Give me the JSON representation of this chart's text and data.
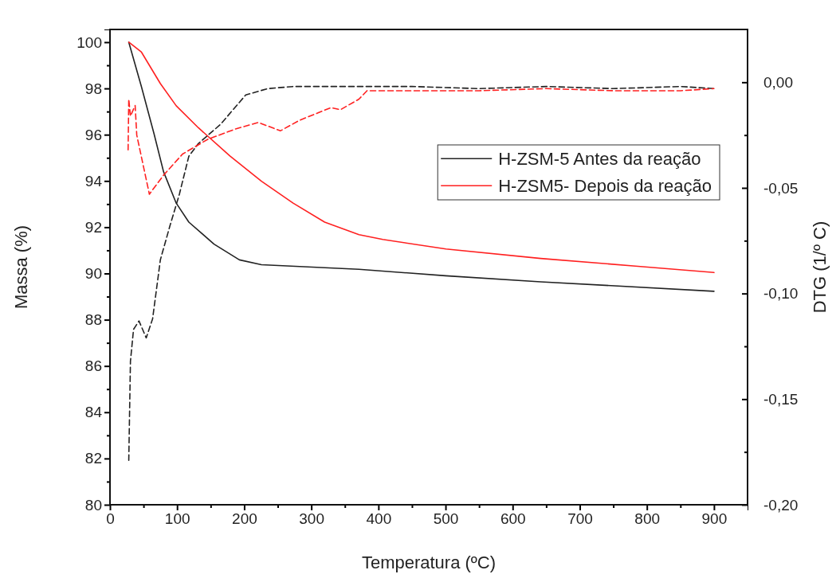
{
  "chart_data": {
    "type": "line",
    "xlabel": "Temperatura (ºC)",
    "ylabel": "Massa (%)",
    "y2label": "DTG (1/º C)",
    "xlim": [
      0,
      950
    ],
    "ylim": [
      80,
      100.55
    ],
    "y2lim": [
      -0.2,
      0.025
    ],
    "xticks": [
      0,
      {
        "value": 50,
        "label": null
      },
      100,
      {
        "value": 150,
        "label": null
      },
      200,
      {
        "value": 250,
        "label": null
      },
      300,
      {
        "value": 350,
        "label": null
      },
      400,
      {
        "value": 450,
        "label": null
      },
      500,
      {
        "value": 550,
        "label": null
      },
      600,
      {
        "value": 650,
        "label": null
      },
      700,
      {
        "value": 750,
        "label": null
      },
      800,
      {
        "value": 850,
        "label": null
      },
      900
    ],
    "yticks": [
      80,
      {
        "value": 81,
        "label": null
      },
      82,
      {
        "value": 83,
        "label": null
      },
      84,
      {
        "value": 85,
        "label": null
      },
      86,
      {
        "value": 87,
        "label": null
      },
      88,
      {
        "value": 89,
        "label": null
      },
      90,
      {
        "value": 91,
        "label": null
      },
      92,
      {
        "value": 93,
        "label": null
      },
      94,
      {
        "value": 95,
        "label": null
      },
      96,
      {
        "value": 97,
        "label": null
      },
      98,
      {
        "value": 99,
        "label": null
      },
      100
    ],
    "y2ticks": [
      {
        "value": -0.2,
        "label": "-0,20"
      },
      {
        "value": -0.175,
        "label": null
      },
      {
        "value": -0.15,
        "label": "-0,15"
      },
      {
        "value": -0.125,
        "label": null
      },
      {
        "value": -0.1,
        "label": "-0,10"
      },
      {
        "value": -0.075,
        "label": null
      },
      {
        "value": -0.05,
        "label": "-0,05"
      },
      {
        "value": -0.025,
        "label": null
      },
      {
        "value": 0,
        "label": "0,00"
      }
    ],
    "grid": false,
    "legend": "top right",
    "series": [
      {
        "name": "H-ZSM-5 Antes da reação",
        "color": "#222222",
        "line_style": "solid",
        "x": [
          28,
          46.9,
          65.7,
          79.8,
          98.7,
          117.5,
          155,
          192.8,
          225.7,
          371,
          500,
          641.7,
          900
        ],
        "values": [
          100,
          98.07,
          96.03,
          94.4,
          93.04,
          92.22,
          91.27,
          90.59,
          90.38,
          90.18,
          89.9,
          89.64,
          89.23
        ]
      },
      {
        "name": "H-ZSM5- Depois da reação",
        "color": "#ff2020",
        "line_style": "solid",
        "x": [
          28,
          46.9,
          75.1,
          98.7,
          131.7,
          178.7,
          225.7,
          272.9,
          319.9,
          371,
          406.5,
          500.7,
          641.7,
          783,
          900
        ],
        "values": [
          100,
          99.57,
          98.21,
          97.25,
          96.3,
          95.08,
          93.99,
          93.04,
          92.22,
          91.68,
          91.47,
          91.06,
          90.65,
          90.32,
          90.04
        ]
      },
      {
        "color": "#222222",
        "line_style": "dashed",
        "axis": "y2",
        "x": [
          28,
          30.5,
          35.1,
          43.2,
          54,
          63.5,
          75.1,
          89.3,
          103.4,
          117.5,
          131.7,
          164.5,
          202.3,
          235.1,
          272.9,
          357.5,
          450,
          550,
          650,
          750,
          850,
          900
        ],
        "values": [
          -0.179,
          -0.132,
          -0.117,
          -0.113,
          -0.121,
          -0.112,
          -0.084,
          -0.068,
          -0.053,
          -0.035,
          -0.029,
          -0.02,
          -0.006,
          -0.003,
          -0.002,
          -0.002,
          -0.002,
          -0.003,
          -0.002,
          -0.003,
          -0.002,
          -0.003
        ]
      },
      {
        "color": "#ff2020",
        "line_style": "dashed",
        "axis": "y2",
        "x": [
          27,
          28,
          30.5,
          37.5,
          39.9,
          58.7,
          79.8,
          108.1,
          145.7,
          188.1,
          221.1,
          253.9,
          282.3,
          329.3,
          343.3,
          371,
          383,
          450,
          550,
          650,
          750,
          850,
          900
        ],
        "values": [
          -0.032,
          -0.008,
          -0.016,
          -0.011,
          -0.025,
          -0.053,
          -0.044,
          -0.034,
          -0.027,
          -0.022,
          -0.019,
          -0.023,
          -0.018,
          -0.012,
          -0.013,
          -0.008,
          -0.004,
          -0.004,
          -0.004,
          -0.003,
          -0.004,
          -0.004,
          -0.003
        ]
      }
    ]
  }
}
